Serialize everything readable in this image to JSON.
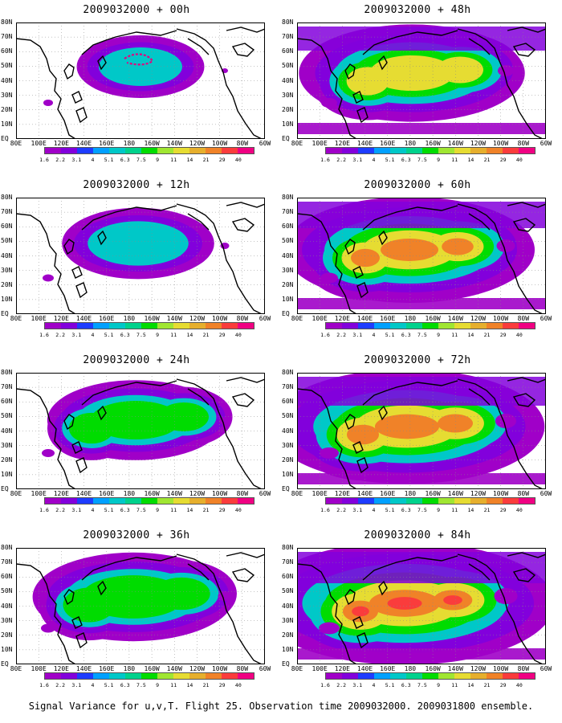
{
  "figure": {
    "footer": "Signal Variance for u,v,T. Flight 25. Observation time 2009032000. 2009031800 ensemble.",
    "lat_labels": [
      "80N",
      "70N",
      "60N",
      "50N",
      "40N",
      "30N",
      "20N",
      "10N",
      "EQ"
    ],
    "lon_labels": [
      "80E",
      "100E",
      "120E",
      "140E",
      "160E",
      "180",
      "160W",
      "140W",
      "120W",
      "100W",
      "80W",
      "60W"
    ],
    "colorbar_labels": [
      "1.6",
      "2.2",
      "3.1",
      "4",
      "5.1",
      "6.3",
      "7.5",
      "9",
      "11",
      "14",
      "21",
      "29",
      "40"
    ],
    "colorbar_colors": [
      "#a000c8",
      "#8200dc",
      "#1e3cff",
      "#00a0ff",
      "#00c8c8",
      "#00d28c",
      "#00dc00",
      "#a0e632",
      "#e6dc32",
      "#e6af2d",
      "#f08228",
      "#fa3c3c",
      "#f00082"
    ],
    "panels": [
      {
        "title": "2009032000 + 00h",
        "level": 0
      },
      {
        "title": "2009032000 + 12h",
        "level": 1
      },
      {
        "title": "2009032000 + 24h",
        "level": 2
      },
      {
        "title": "2009032000 + 36h",
        "level": 3
      },
      {
        "title": "2009032000 + 48h",
        "level": 4
      },
      {
        "title": "2009032000 + 60h",
        "level": 5
      },
      {
        "title": "2009032000 + 72h",
        "level": 6
      },
      {
        "title": "2009032000 + 84h",
        "level": 7
      }
    ]
  }
}
